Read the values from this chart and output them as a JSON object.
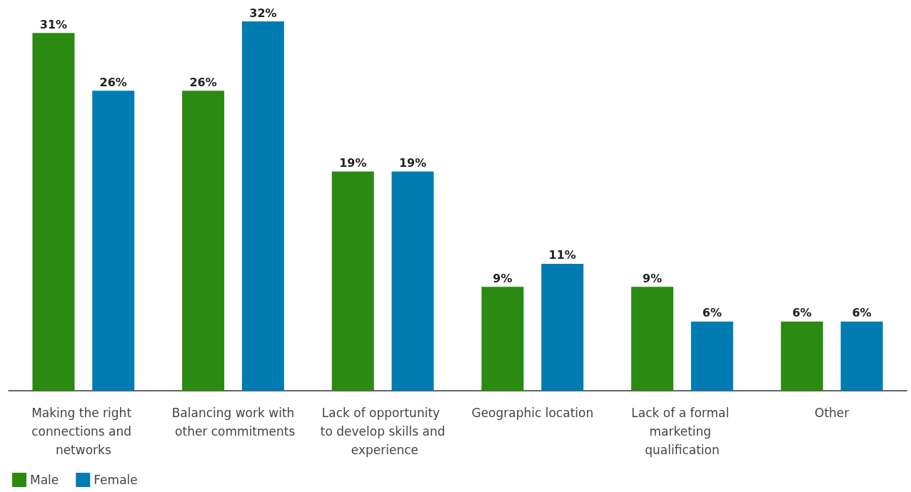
{
  "chart_data": {
    "type": "bar",
    "categories": [
      "Making the right connections and networks",
      "Balancing work with other commitments",
      "Lack of opportunity to develop skills and experience",
      "Geographic location",
      "Lack of a formal marketing qualification",
      "Other"
    ],
    "series": [
      {
        "name": "Male",
        "color": "#2a8a12",
        "values": [
          31,
          26,
          19,
          9,
          9,
          6
        ],
        "value_labels": [
          "31%",
          "26%",
          "19%",
          "9%",
          "9%",
          "6%"
        ]
      },
      {
        "name": "Female",
        "color": "#007cb3",
        "values": [
          26,
          32,
          19,
          11,
          6,
          6
        ],
        "value_labels": [
          "26%",
          "32%",
          "19%",
          "11%",
          "6%",
          "6%"
        ]
      }
    ],
    "grid": false,
    "legend": "bottom left"
  }
}
